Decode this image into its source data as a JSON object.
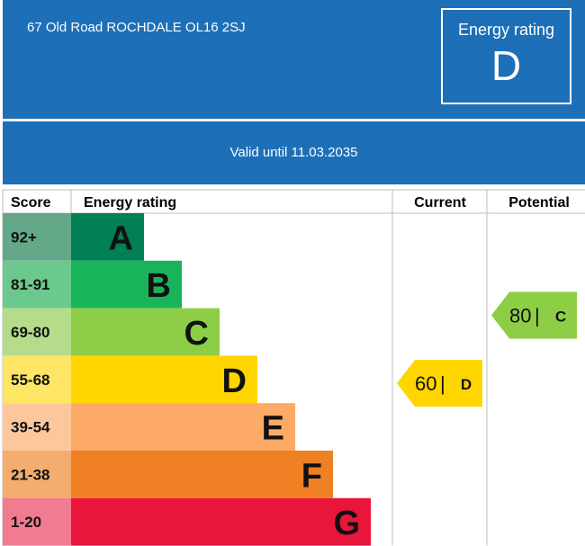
{
  "header": {
    "address": "67 Old Road ROCHDALE OL16 2SJ",
    "rating_label": "Energy rating",
    "rating_letter": "D"
  },
  "validity": {
    "text": "Valid until 11.03.2035"
  },
  "table": {
    "col_score": "Score",
    "col_rating": "Energy rating",
    "col_current": "Current",
    "col_potential": "Potential"
  },
  "chart_data": {
    "type": "bar",
    "bands": [
      {
        "score": "92+",
        "letter": "A",
        "color": "#008054",
        "score_bg": "#64a88a"
      },
      {
        "score": "81-91",
        "letter": "B",
        "color": "#19b459",
        "score_bg": "#6bc98d"
      },
      {
        "score": "69-80",
        "letter": "C",
        "color": "#8dce46",
        "score_bg": "#b5dc8b"
      },
      {
        "score": "55-68",
        "letter": "D",
        "color": "#ffd500",
        "score_bg": "#ffe565"
      },
      {
        "score": "39-54",
        "letter": "E",
        "color": "#fcaa65",
        "score_bg": "#fdc79b"
      },
      {
        "score": "21-38",
        "letter": "F",
        "color": "#ef8023",
        "score_bg": "#f4ac6f"
      },
      {
        "score": "1-20",
        "letter": "G",
        "color": "#e9153b",
        "score_bg": "#f17b90"
      }
    ],
    "current": {
      "value": 60,
      "letter": "D",
      "color": "#ffd500"
    },
    "potential": {
      "value": 80,
      "letter": "C",
      "color": "#8dce46"
    }
  }
}
